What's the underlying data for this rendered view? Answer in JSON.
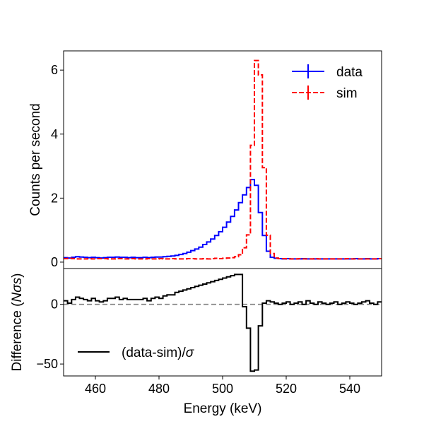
{
  "chart_data": [
    {
      "panel": "top",
      "type": "line",
      "drawstyle": "steps",
      "ylabel": "Counts per second",
      "xlim": [
        450,
        550
      ],
      "ylim": [
        -0.2,
        6.6
      ],
      "yticks": [
        0,
        2,
        4,
        6
      ],
      "ytick_labels": [
        "0",
        "2",
        "4",
        "6"
      ],
      "legend": {
        "position": "top-right",
        "entries": [
          "data",
          "sim"
        ]
      },
      "bin_edges": [
        450,
        451.25,
        452.5,
        453.75,
        455,
        456.25,
        457.5,
        458.75,
        460,
        461.25,
        462.5,
        463.75,
        465,
        466.25,
        467.5,
        468.75,
        470,
        471.25,
        472.5,
        473.75,
        475,
        476.25,
        477.5,
        478.75,
        480,
        481.25,
        482.5,
        483.75,
        485,
        486.25,
        487.5,
        488.75,
        490,
        491.25,
        492.5,
        493.75,
        495,
        496.25,
        497.5,
        498.75,
        500,
        501.25,
        502.5,
        503.75,
        505,
        506.25,
        507.5,
        508.75,
        510,
        511.25,
        512.5,
        513.75,
        515,
        516.25,
        517.5,
        518.75,
        520,
        521.25,
        522.5,
        523.75,
        525,
        526.25,
        527.5,
        528.75,
        530,
        531.25,
        532.5,
        533.75,
        535,
        536.25,
        537.5,
        538.75,
        540,
        541.25,
        542.5,
        543.75,
        545,
        546.25,
        547.5,
        548.75,
        550
      ],
      "series": [
        {
          "name": "data",
          "color": "#0000ff",
          "linestyle": "solid",
          "values": [
            0.14,
            0.13,
            0.15,
            0.17,
            0.16,
            0.15,
            0.14,
            0.15,
            0.14,
            0.13,
            0.14,
            0.15,
            0.15,
            0.16,
            0.15,
            0.15,
            0.14,
            0.15,
            0.14,
            0.14,
            0.15,
            0.14,
            0.15,
            0.16,
            0.16,
            0.17,
            0.18,
            0.19,
            0.21,
            0.24,
            0.27,
            0.31,
            0.36,
            0.41,
            0.47,
            0.55,
            0.63,
            0.72,
            0.83,
            0.95,
            1.09,
            1.25,
            1.43,
            1.63,
            1.86,
            2.1,
            2.33,
            2.58,
            2.4,
            1.55,
            0.83,
            0.34,
            0.15,
            0.12,
            0.11,
            0.1,
            0.11,
            0.1,
            0.1,
            0.1,
            0.11,
            0.1,
            0.1,
            0.1,
            0.1,
            0.1,
            0.1,
            0.1,
            0.1,
            0.1,
            0.1,
            0.1,
            0.1,
            0.11,
            0.1,
            0.1,
            0.11,
            0.1,
            0.1,
            0.11
          ]
        },
        {
          "name": "sim",
          "color": "#ff0000",
          "linestyle": "dashed",
          "values": [
            0.11,
            0.12,
            0.11,
            0.1,
            0.1,
            0.1,
            0.11,
            0.1,
            0.11,
            0.11,
            0.11,
            0.1,
            0.1,
            0.11,
            0.11,
            0.1,
            0.1,
            0.11,
            0.1,
            0.1,
            0.1,
            0.11,
            0.1,
            0.1,
            0.11,
            0.1,
            0.1,
            0.11,
            0.1,
            0.1,
            0.1,
            0.11,
            0.11,
            0.1,
            0.1,
            0.11,
            0.1,
            0.11,
            0.12,
            0.11,
            0.12,
            0.13,
            0.14,
            0.17,
            0.23,
            0.45,
            0.85,
            3.65,
            6.3,
            5.85,
            2.95,
            0.84,
            0.27,
            0.13,
            0.11,
            0.11,
            0.1,
            0.1,
            0.1,
            0.11,
            0.1,
            0.1,
            0.1,
            0.11,
            0.1,
            0.1,
            0.1,
            0.1,
            0.1,
            0.1,
            0.1,
            0.11,
            0.1,
            0.1,
            0.1,
            0.1,
            0.1,
            0.1,
            0.1,
            0.11
          ]
        }
      ]
    },
    {
      "panel": "bottom",
      "type": "line",
      "drawstyle": "steps",
      "xlabel": "Energy (keV)",
      "ylabel_parts": [
        "Difference (",
        "Nσs",
        ")"
      ],
      "xlim": [
        450,
        550
      ],
      "ylim": [
        -60,
        30
      ],
      "xticks": [
        460,
        480,
        500,
        520,
        540
      ],
      "xtick_labels": [
        "460",
        "480",
        "500",
        "520",
        "540"
      ],
      "yticks": [
        0,
        -50
      ],
      "ytick_labels": [
        "0",
        "−50"
      ],
      "reference_line": {
        "y": 0,
        "color": "#808080",
        "linestyle": "dashed"
      },
      "legend": {
        "position": "bottom-left",
        "entries_parts": [
          [
            "(data-sim)/",
            "σ"
          ]
        ]
      },
      "series": [
        {
          "name": "(data-sim)/σ",
          "color": "#000000",
          "linestyle": "solid",
          "values": [
            3,
            1,
            4,
            6,
            5,
            4,
            3,
            5,
            3,
            2,
            3,
            5,
            5,
            6,
            4,
            5,
            4,
            4,
            4,
            4,
            5,
            3,
            5,
            6,
            5,
            7,
            8,
            8,
            10,
            11,
            12,
            13,
            14,
            15,
            16,
            17,
            18,
            19,
            20,
            21,
            22,
            23,
            24,
            25,
            25,
            -2,
            -20,
            -56,
            -55,
            -18,
            1,
            3,
            2,
            1,
            0,
            1,
            2,
            0,
            1,
            2,
            0,
            3,
            1,
            0,
            2,
            1,
            0,
            1,
            2,
            0,
            1,
            2,
            1,
            0,
            1,
            2,
            3,
            1,
            0,
            2
          ]
        }
      ]
    }
  ]
}
